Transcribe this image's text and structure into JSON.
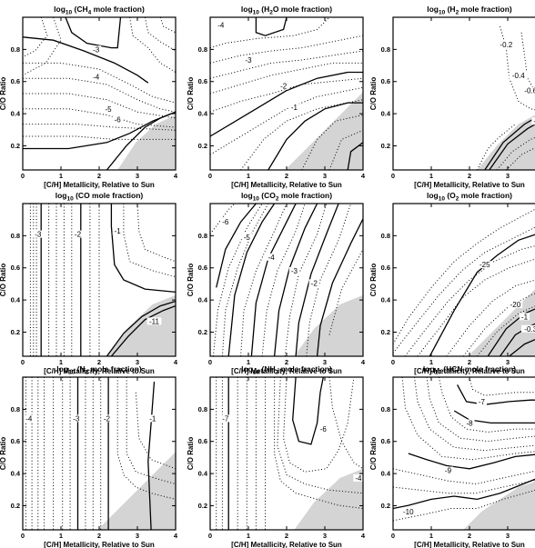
{
  "chart_data": [
    {
      "type": "contour",
      "species": "CH4",
      "title": {
        "pre": "log",
        "sub10": "10",
        "open": " (CH",
        "sub": "4",
        "close": " mole fraction)"
      },
      "xlabel": "[C/H] Metallicity, Relative to Sun",
      "ylabel": "C/O Ratio",
      "xlim": [
        0,
        4
      ],
      "ylim": [
        0.05,
        1.0
      ],
      "xticks": [
        "0",
        "1",
        "2",
        "3",
        "4"
      ],
      "yticks": [
        "0.2",
        "0.4",
        "0.6",
        "0.8"
      ],
      "contour_labels": [
        "-3",
        "-4",
        "-5",
        "-6"
      ]
    },
    {
      "type": "contour",
      "species": "H2O",
      "title": {
        "pre": "log",
        "sub10": "10",
        "open": " (H",
        "sub": "2",
        "close": "O mole fraction)"
      },
      "xlabel": "[C/H] Metallicity, Relative to Sun",
      "ylabel": "C/O Ratio",
      "xlim": [
        0,
        4
      ],
      "ylim": [
        0.05,
        1.0
      ],
      "xticks": [
        "0",
        "1",
        "2",
        "3",
        "4"
      ],
      "yticks": [
        "0.2",
        "0.4",
        "0.6",
        "0.8"
      ],
      "contour_labels": [
        "-4",
        "-3",
        "-2",
        "-1"
      ]
    },
    {
      "type": "contour",
      "species": "H2",
      "title": {
        "pre": "log",
        "sub10": "10",
        "open": " (H",
        "sub": "2",
        "close": " mole fraction)"
      },
      "xlabel": "[C/H] Metallicity, Relative to Sun",
      "ylabel": "C/O Ratio",
      "xlim": [
        0,
        4
      ],
      "ylim": [
        0.05,
        1.0
      ],
      "xticks": [
        "0",
        "1",
        "2",
        "3",
        "4"
      ],
      "yticks": [
        "0.2",
        "0.4",
        "0.6",
        "0.8"
      ],
      "contour_labels": [
        "-0.2",
        "-0.4",
        "-0.6",
        "-1"
      ]
    },
    {
      "type": "contour",
      "species": "CO",
      "title": {
        "pre": "log",
        "sub10": "10",
        "open": " (CO",
        "sub": "",
        "close": " mole fraction)"
      },
      "xlabel": "[C/H] Metallicity, Relative to Sun",
      "ylabel": "C/O Ratio",
      "xlim": [
        0,
        4
      ],
      "ylim": [
        0.05,
        1.0
      ],
      "xticks": [
        "0",
        "1",
        "2",
        "3",
        "4"
      ],
      "yticks": [
        "0.2",
        "0.4",
        "0.6",
        "0.8"
      ],
      "contour_labels": [
        "-3",
        "-2",
        "-1",
        "-11"
      ]
    },
    {
      "type": "contour",
      "species": "CO2",
      "title": {
        "pre": "log",
        "sub10": "10",
        "open": " (CO",
        "sub": "2",
        "close": " mole fraction)"
      },
      "xlabel": "[C/H] Metallicity, Relative to Sun",
      "ylabel": "C/O Ratio",
      "xlim": [
        0,
        4
      ],
      "ylim": [
        0.05,
        1.0
      ],
      "xticks": [
        "0",
        "1",
        "2",
        "3",
        "4"
      ],
      "yticks": [
        "0.2",
        "0.4",
        "0.6",
        "0.8"
      ],
      "contour_labels": [
        "-6",
        "-5",
        "-4",
        "-3",
        "-2"
      ]
    },
    {
      "type": "contour",
      "species": "O2",
      "title": {
        "pre": "log",
        "sub10": "10",
        "open": " (O",
        "sub": "2",
        "close": " mole fraction)"
      },
      "xlabel": "[C/H] Metallicity, Relative to Sun",
      "ylabel": "C/O Ratio",
      "xlim": [
        0,
        4
      ],
      "ylim": [
        0.05,
        1.0
      ],
      "xticks": [
        "0",
        "1",
        "2",
        "3",
        "4"
      ],
      "yticks": [
        "0.2",
        "0.4",
        "0.6",
        "0.8"
      ],
      "contour_labels": [
        "-25",
        "-20",
        "-1",
        "-0.3"
      ]
    },
    {
      "type": "contour",
      "species": "N2",
      "title": {
        "pre": "log",
        "sub10": "10",
        "open": " (N",
        "sub": "2",
        "close": " mole fraction)"
      },
      "xlabel": "[C/H] Metallicity, Relative to Sun",
      "ylabel": "C/O Ratio",
      "xlim": [
        0,
        4
      ],
      "ylim": [
        0.05,
        1.0
      ],
      "xticks": [
        "0",
        "1",
        "2",
        "3",
        "4"
      ],
      "yticks": [
        "0.2",
        "0.4",
        "0.6",
        "0.8"
      ],
      "contour_labels": [
        "-4",
        "-3",
        "-2",
        "-1"
      ]
    },
    {
      "type": "contour",
      "species": "NH3",
      "title": {
        "pre": "log",
        "sub10": "10",
        "open": " (NH",
        "sub": "3",
        "close": " mole fraction)"
      },
      "xlabel": "[C/H] Metallicity, Relative to Sun",
      "ylabel": "C/O Ratio",
      "xlim": [
        0,
        4
      ],
      "ylim": [
        0.05,
        1.0
      ],
      "xticks": [
        "0",
        "1",
        "2",
        "3",
        "4"
      ],
      "yticks": [
        "0.2",
        "0.4",
        "0.6",
        "0.8"
      ],
      "contour_labels": [
        "-7",
        "-6",
        "-4"
      ]
    },
    {
      "type": "contour",
      "species": "HCN",
      "title": {
        "pre": "log",
        "sub10": "10",
        "open": " (HCN",
        "sub": "",
        "close": " mole fraction)"
      },
      "xlabel": "[C/H] Metallicity, Relative to Sun",
      "ylabel": "C/O Ratio",
      "xlim": [
        0,
        4
      ],
      "ylim": [
        0.05,
        1.0
      ],
      "xticks": [
        "0",
        "1",
        "2",
        "3",
        "4"
      ],
      "yticks": [
        "0.2",
        "0.4",
        "0.6",
        "0.8"
      ],
      "contour_labels": [
        "-7",
        "-8",
        "-9",
        "-10"
      ]
    }
  ],
  "style": {
    "shade_color": "#d4d4d4",
    "line_color": "#000000"
  }
}
